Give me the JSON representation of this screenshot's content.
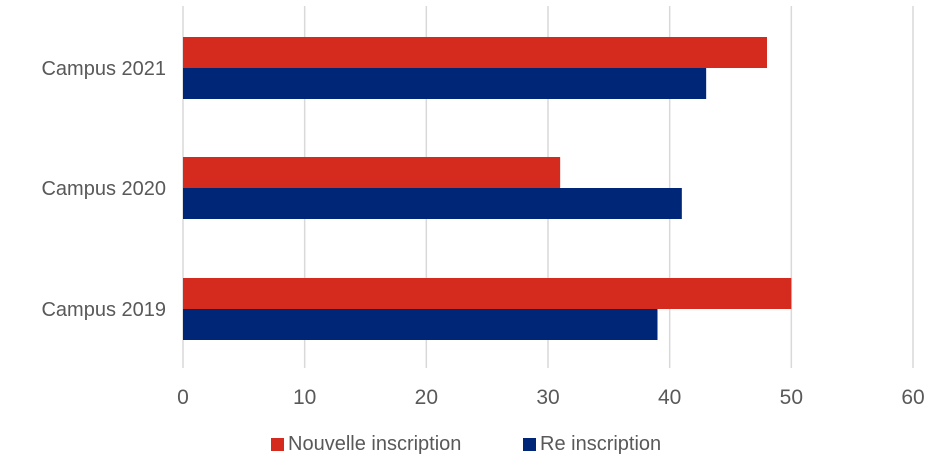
{
  "chart_data": {
    "type": "bar",
    "orientation": "horizontal",
    "categories": [
      "Campus 2021",
      "Campus 2020",
      "Campus 2019"
    ],
    "series": [
      {
        "name": "Nouvelle inscription",
        "values": [
          48,
          31,
          50
        ],
        "color": "#D52B1E"
      },
      {
        "name": "Re inscription",
        "values": [
          43,
          41,
          39
        ],
        "color": "#002777"
      }
    ],
    "xlim": [
      0,
      60
    ],
    "x_ticks": [
      "0",
      "10",
      "20",
      "30",
      "40",
      "50",
      "60"
    ],
    "grid": true,
    "legend_position": "bottom",
    "title": "",
    "xlabel": "",
    "ylabel": ""
  },
  "colors": {
    "grid": "#d9d9d9",
    "text": "#595959",
    "background": "#ffffff"
  }
}
